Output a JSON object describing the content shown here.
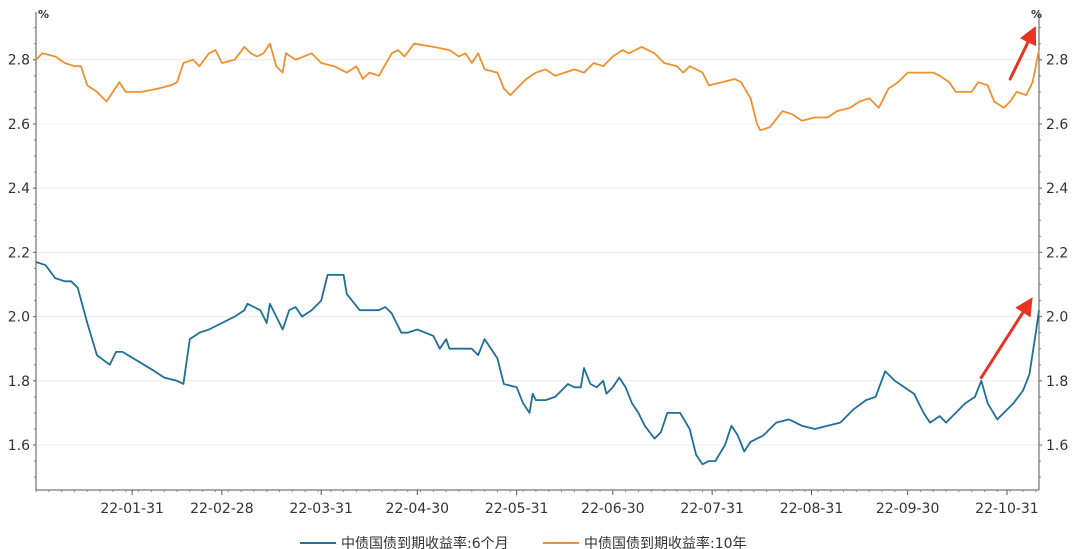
{
  "chart_data": {
    "type": "line",
    "left_axis_unit": "%",
    "right_axis_unit": "%",
    "x_tick_labels": [
      "22-01-31",
      "22-02-28",
      "22-03-31",
      "22-04-30",
      "22-05-31",
      "22-06-30",
      "22-07-31",
      "22-08-31",
      "22-09-30",
      "22-10-31"
    ],
    "x_range": [
      "2022-01-01",
      "2022-11-10"
    ],
    "y_left": {
      "range": [
        1.46,
        2.93
      ],
      "ticks": [
        1.6,
        1.8,
        2.0,
        2.2,
        2.4,
        2.6,
        2.8
      ]
    },
    "y_right": {
      "range": [
        1.46,
        2.93
      ],
      "ticks": [
        1.6,
        1.8,
        2.0,
        2.2,
        2.4,
        2.6,
        2.8
      ]
    },
    "grid": "horizontal",
    "legend_position": "bottom",
    "series": [
      {
        "name": "中债国债到期收益率:6个月",
        "color": "#1f6f98",
        "points": [
          [
            "2022-01-01",
            2.17
          ],
          [
            "2022-01-04",
            2.16
          ],
          [
            "2022-01-07",
            2.12
          ],
          [
            "2022-01-10",
            2.11
          ],
          [
            "2022-01-12",
            2.11
          ],
          [
            "2022-01-14",
            2.09
          ],
          [
            "2022-01-17",
            1.98
          ],
          [
            "2022-01-20",
            1.88
          ],
          [
            "2022-01-24",
            1.85
          ],
          [
            "2022-01-26",
            1.89
          ],
          [
            "2022-01-28",
            1.89
          ],
          [
            "2022-02-07",
            1.83
          ],
          [
            "2022-02-10",
            1.81
          ],
          [
            "2022-02-14",
            1.8
          ],
          [
            "2022-02-16",
            1.79
          ],
          [
            "2022-02-17",
            1.86
          ],
          [
            "2022-02-18",
            1.93
          ],
          [
            "2022-02-21",
            1.95
          ],
          [
            "2022-02-24",
            1.96
          ],
          [
            "2022-02-28",
            1.98
          ],
          [
            "2022-03-04",
            2.0
          ],
          [
            "2022-03-07",
            2.02
          ],
          [
            "2022-03-08",
            2.04
          ],
          [
            "2022-03-10",
            2.03
          ],
          [
            "2022-03-12",
            2.02
          ],
          [
            "2022-03-14",
            1.98
          ],
          [
            "2022-03-15",
            2.04
          ],
          [
            "2022-03-17",
            2.0
          ],
          [
            "2022-03-19",
            1.96
          ],
          [
            "2022-03-21",
            2.02
          ],
          [
            "2022-03-23",
            2.03
          ],
          [
            "2022-03-25",
            2.0
          ],
          [
            "2022-03-28",
            2.02
          ],
          [
            "2022-03-31",
            2.05
          ],
          [
            "2022-04-02",
            2.13
          ],
          [
            "2022-04-07",
            2.13
          ],
          [
            "2022-04-08",
            2.07
          ],
          [
            "2022-04-12",
            2.02
          ],
          [
            "2022-04-18",
            2.02
          ],
          [
            "2022-04-20",
            2.03
          ],
          [
            "2022-04-22",
            2.01
          ],
          [
            "2022-04-25",
            1.95
          ],
          [
            "2022-04-27",
            1.95
          ],
          [
            "2022-04-30",
            1.96
          ],
          [
            "2022-05-05",
            1.94
          ],
          [
            "2022-05-07",
            1.9
          ],
          [
            "2022-05-09",
            1.93
          ],
          [
            "2022-05-10",
            1.9
          ],
          [
            "2022-05-17",
            1.9
          ],
          [
            "2022-05-19",
            1.88
          ],
          [
            "2022-05-21",
            1.93
          ],
          [
            "2022-05-23",
            1.9
          ],
          [
            "2022-05-25",
            1.87
          ],
          [
            "2022-05-27",
            1.79
          ],
          [
            "2022-05-31",
            1.78
          ],
          [
            "2022-06-02",
            1.73
          ],
          [
            "2022-06-04",
            1.7
          ],
          [
            "2022-06-05",
            1.76
          ],
          [
            "2022-06-06",
            1.74
          ],
          [
            "2022-06-09",
            1.74
          ],
          [
            "2022-06-12",
            1.75
          ],
          [
            "2022-06-14",
            1.77
          ],
          [
            "2022-06-16",
            1.79
          ],
          [
            "2022-06-18",
            1.78
          ],
          [
            "2022-06-20",
            1.78
          ],
          [
            "2022-06-21",
            1.84
          ],
          [
            "2022-06-23",
            1.79
          ],
          [
            "2022-06-25",
            1.78
          ],
          [
            "2022-06-27",
            1.8
          ],
          [
            "2022-06-28",
            1.76
          ],
          [
            "2022-06-30",
            1.78
          ],
          [
            "2022-07-02",
            1.81
          ],
          [
            "2022-07-04",
            1.78
          ],
          [
            "2022-07-06",
            1.73
          ],
          [
            "2022-07-08",
            1.7
          ],
          [
            "2022-07-10",
            1.66
          ],
          [
            "2022-07-13",
            1.62
          ],
          [
            "2022-07-15",
            1.64
          ],
          [
            "2022-07-17",
            1.7
          ],
          [
            "2022-07-21",
            1.7
          ],
          [
            "2022-07-24",
            1.65
          ],
          [
            "2022-07-26",
            1.57
          ],
          [
            "2022-07-28",
            1.54
          ],
          [
            "2022-07-30",
            1.55
          ],
          [
            "2022-08-01",
            1.55
          ],
          [
            "2022-08-04",
            1.6
          ],
          [
            "2022-08-06",
            1.66
          ],
          [
            "2022-08-08",
            1.63
          ],
          [
            "2022-08-10",
            1.58
          ],
          [
            "2022-08-12",
            1.61
          ],
          [
            "2022-08-16",
            1.63
          ],
          [
            "2022-08-20",
            1.67
          ],
          [
            "2022-08-24",
            1.68
          ],
          [
            "2022-08-28",
            1.66
          ],
          [
            "2022-09-01",
            1.65
          ],
          [
            "2022-09-05",
            1.66
          ],
          [
            "2022-09-09",
            1.67
          ],
          [
            "2022-09-13",
            1.71
          ],
          [
            "2022-09-17",
            1.74
          ],
          [
            "2022-09-20",
            1.75
          ],
          [
            "2022-09-23",
            1.83
          ],
          [
            "2022-09-26",
            1.8
          ],
          [
            "2022-09-29",
            1.78
          ],
          [
            "2022-10-02",
            1.76
          ],
          [
            "2022-10-05",
            1.7
          ],
          [
            "2022-10-07",
            1.67
          ],
          [
            "2022-10-10",
            1.69
          ],
          [
            "2022-10-12",
            1.67
          ],
          [
            "2022-10-15",
            1.7
          ],
          [
            "2022-10-18",
            1.73
          ],
          [
            "2022-10-21",
            1.75
          ],
          [
            "2022-10-23",
            1.8
          ],
          [
            "2022-10-25",
            1.73
          ],
          [
            "2022-10-28",
            1.68
          ],
          [
            "2022-10-31",
            1.71
          ],
          [
            "2022-11-02",
            1.73
          ],
          [
            "2022-11-05",
            1.77
          ],
          [
            "2022-11-07",
            1.82
          ],
          [
            "2022-11-09",
            1.95
          ],
          [
            "2022-11-10",
            2.02
          ]
        ]
      },
      {
        "name": "中债国债到期收益率:10年",
        "color": "#f0912f",
        "points": [
          [
            "2022-01-01",
            2.8
          ],
          [
            "2022-01-03",
            2.82
          ],
          [
            "2022-01-07",
            2.81
          ],
          [
            "2022-01-10",
            2.79
          ],
          [
            "2022-01-13",
            2.78
          ],
          [
            "2022-01-15",
            2.78
          ],
          [
            "2022-01-17",
            2.72
          ],
          [
            "2022-01-20",
            2.7
          ],
          [
            "2022-01-23",
            2.67
          ],
          [
            "2022-01-25",
            2.7
          ],
          [
            "2022-01-27",
            2.73
          ],
          [
            "2022-01-29",
            2.7
          ],
          [
            "2022-02-03",
            2.7
          ],
          [
            "2022-02-08",
            2.71
          ],
          [
            "2022-02-12",
            2.72
          ],
          [
            "2022-02-14",
            2.73
          ],
          [
            "2022-02-16",
            2.79
          ],
          [
            "2022-02-19",
            2.8
          ],
          [
            "2022-02-21",
            2.78
          ],
          [
            "2022-02-24",
            2.82
          ],
          [
            "2022-02-26",
            2.83
          ],
          [
            "2022-02-28",
            2.79
          ],
          [
            "2022-03-04",
            2.8
          ],
          [
            "2022-03-07",
            2.84
          ],
          [
            "2022-03-09",
            2.82
          ],
          [
            "2022-03-11",
            2.81
          ],
          [
            "2022-03-13",
            2.82
          ],
          [
            "2022-03-15",
            2.85
          ],
          [
            "2022-03-17",
            2.78
          ],
          [
            "2022-03-19",
            2.76
          ],
          [
            "2022-03-20",
            2.82
          ],
          [
            "2022-03-23",
            2.8
          ],
          [
            "2022-03-28",
            2.82
          ],
          [
            "2022-03-31",
            2.79
          ],
          [
            "2022-04-04",
            2.78
          ],
          [
            "2022-04-08",
            2.76
          ],
          [
            "2022-04-11",
            2.78
          ],
          [
            "2022-04-13",
            2.74
          ],
          [
            "2022-04-15",
            2.76
          ],
          [
            "2022-04-18",
            2.75
          ],
          [
            "2022-04-22",
            2.82
          ],
          [
            "2022-04-24",
            2.83
          ],
          [
            "2022-04-26",
            2.81
          ],
          [
            "2022-04-29",
            2.85
          ],
          [
            "2022-05-05",
            2.84
          ],
          [
            "2022-05-10",
            2.83
          ],
          [
            "2022-05-13",
            2.81
          ],
          [
            "2022-05-15",
            2.82
          ],
          [
            "2022-05-17",
            2.79
          ],
          [
            "2022-05-19",
            2.82
          ],
          [
            "2022-05-21",
            2.77
          ],
          [
            "2022-05-25",
            2.76
          ],
          [
            "2022-05-27",
            2.71
          ],
          [
            "2022-05-29",
            2.69
          ],
          [
            "2022-06-01",
            2.72
          ],
          [
            "2022-06-03",
            2.74
          ],
          [
            "2022-06-06",
            2.76
          ],
          [
            "2022-06-09",
            2.77
          ],
          [
            "2022-06-12",
            2.75
          ],
          [
            "2022-06-15",
            2.76
          ],
          [
            "2022-06-18",
            2.77
          ],
          [
            "2022-06-21",
            2.76
          ],
          [
            "2022-06-24",
            2.79
          ],
          [
            "2022-06-27",
            2.78
          ],
          [
            "2022-06-30",
            2.81
          ],
          [
            "2022-07-03",
            2.83
          ],
          [
            "2022-07-05",
            2.82
          ],
          [
            "2022-07-09",
            2.84
          ],
          [
            "2022-07-13",
            2.82
          ],
          [
            "2022-07-16",
            2.79
          ],
          [
            "2022-07-20",
            2.78
          ],
          [
            "2022-07-22",
            2.76
          ],
          [
            "2022-07-24",
            2.78
          ],
          [
            "2022-07-28",
            2.76
          ],
          [
            "2022-07-30",
            2.72
          ],
          [
            "2022-08-03",
            2.73
          ],
          [
            "2022-08-07",
            2.74
          ],
          [
            "2022-08-09",
            2.73
          ],
          [
            "2022-08-12",
            2.68
          ],
          [
            "2022-08-14",
            2.6
          ],
          [
            "2022-08-15",
            2.58
          ],
          [
            "2022-08-18",
            2.59
          ],
          [
            "2022-08-22",
            2.64
          ],
          [
            "2022-08-25",
            2.63
          ],
          [
            "2022-08-28",
            2.61
          ],
          [
            "2022-09-01",
            2.62
          ],
          [
            "2022-09-05",
            2.62
          ],
          [
            "2022-09-08",
            2.64
          ],
          [
            "2022-09-12",
            2.65
          ],
          [
            "2022-09-15",
            2.67
          ],
          [
            "2022-09-18",
            2.68
          ],
          [
            "2022-09-21",
            2.65
          ],
          [
            "2022-09-24",
            2.71
          ],
          [
            "2022-09-27",
            2.73
          ],
          [
            "2022-09-30",
            2.76
          ],
          [
            "2022-10-04",
            2.76
          ],
          [
            "2022-10-08",
            2.76
          ],
          [
            "2022-10-10",
            2.75
          ],
          [
            "2022-10-13",
            2.73
          ],
          [
            "2022-10-15",
            2.7
          ],
          [
            "2022-10-20",
            2.7
          ],
          [
            "2022-10-22",
            2.73
          ],
          [
            "2022-10-25",
            2.72
          ],
          [
            "2022-10-27",
            2.67
          ],
          [
            "2022-10-30",
            2.65
          ],
          [
            "2022-11-01",
            2.67
          ],
          [
            "2022-11-03",
            2.7
          ],
          [
            "2022-11-06",
            2.69
          ],
          [
            "2022-11-08",
            2.73
          ],
          [
            "2022-11-10",
            2.83
          ]
        ]
      }
    ]
  },
  "annotations": [
    {
      "type": "arrow",
      "color": "#e63322",
      "from": [
        "2022-11-01",
        2.74
      ],
      "to": [
        "2022-11-09",
        2.905
      ]
    },
    {
      "type": "arrow",
      "color": "#e63322",
      "from": [
        "2022-10-23",
        1.81
      ],
      "to": [
        "2022-11-08",
        2.06
      ]
    }
  ]
}
